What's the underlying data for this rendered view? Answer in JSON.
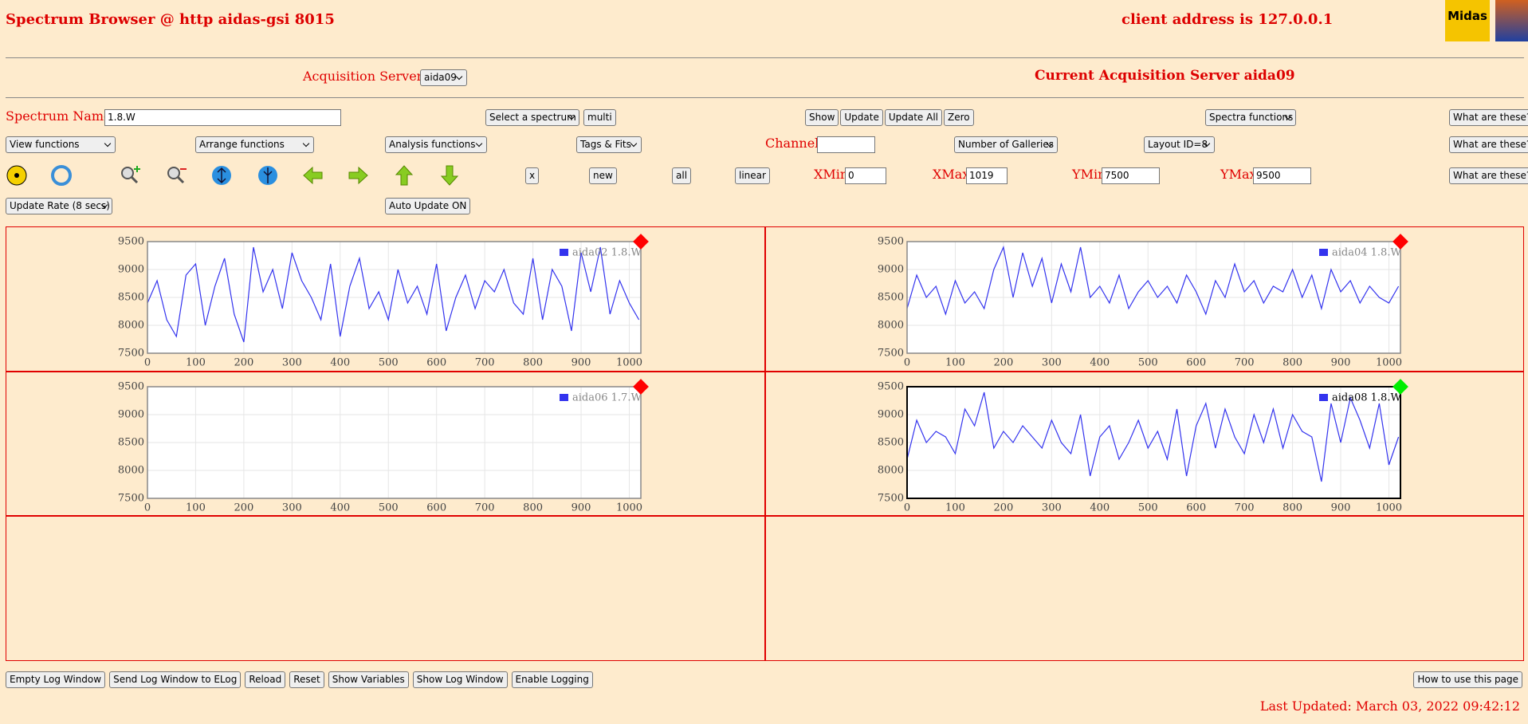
{
  "header": {
    "title": "Spectrum Browser @ http aidas-gsi 8015",
    "client": "client address is 127.0.0.1",
    "logo": "Midas"
  },
  "servers": {
    "label": "Acquisition Servers",
    "selected": "aida09",
    "current": "Current Acquisition Server aida09"
  },
  "row1": {
    "label": "Spectrum Name:",
    "input": "1.8.W",
    "select": "Select a spectrum",
    "multi": "multi",
    "buttons": [
      "Show",
      "Update",
      "Update All",
      "Zero"
    ],
    "spectra": "Spectra functions",
    "help": "What are these?"
  },
  "row2": {
    "selects": [
      "View functions",
      "Arrange functions",
      "Analysis functions",
      "Tags & Fits"
    ],
    "channel": "Channel:",
    "galleries": "Number of Galleries",
    "layout": "Layout ID=8",
    "help": "What are these?"
  },
  "row3": {
    "buttons": [
      "x",
      "new",
      "all",
      "linear"
    ],
    "fields": [
      {
        "label": "XMin",
        "value": 0
      },
      {
        "label": "XMax",
        "value": 1019
      },
      {
        "label": "YMin",
        "value": 7500
      },
      {
        "label": "YMax",
        "value": 9500
      }
    ],
    "help": "What are these?"
  },
  "row4": {
    "rate": "Update Rate (8 secs)",
    "auto": "Auto Update ON"
  },
  "footer": {
    "buttons": [
      "Empty Log Window",
      "Send Log Window to ELog",
      "Reload",
      "Reset",
      "Show Variables",
      "Show Log Window",
      "Enable Logging"
    ],
    "help": "How to use this page",
    "updated": "Last Updated: March 03, 2022 09:42:12"
  },
  "chart_data": [
    {
      "type": "line",
      "xlim": [
        0,
        1024
      ],
      "ylim": [
        7500,
        9500
      ],
      "xticks": [
        0,
        100,
        200,
        300,
        400,
        500,
        600,
        700,
        800,
        900,
        1000
      ],
      "yticks": [
        7500,
        8000,
        8500,
        9000,
        9500
      ],
      "grid": true,
      "marker_color": "#ff0000",
      "frame_color": "#888888",
      "legend_color": "#888888",
      "x": [
        0,
        20,
        40,
        60,
        80,
        100,
        120,
        140,
        160,
        180,
        200,
        220,
        240,
        260,
        280,
        300,
        320,
        340,
        360,
        380,
        400,
        420,
        440,
        460,
        480,
        500,
        520,
        540,
        560,
        580,
        600,
        620,
        640,
        660,
        680,
        700,
        720,
        740,
        760,
        780,
        800,
        820,
        840,
        860,
        880,
        900,
        920,
        940,
        960,
        980,
        1000,
        1020
      ],
      "series": [
        {
          "name": "aida02 1.8.W",
          "color": "#3333ee",
          "values": [
            8400,
            8800,
            8100,
            7800,
            8900,
            9100,
            8000,
            8700,
            9200,
            8200,
            7700,
            9400,
            8600,
            9000,
            8300,
            9300,
            8800,
            8500,
            8100,
            9100,
            7800,
            8700,
            9200,
            8300,
            8600,
            8100,
            9000,
            8400,
            8700,
            8200,
            9100,
            7900,
            8500,
            8900,
            8300,
            8800,
            8600,
            9000,
            8400,
            8200,
            9200,
            8100,
            9000,
            8700,
            7900,
            9300,
            8600,
            9400,
            8200,
            8800,
            8400,
            8100
          ]
        }
      ]
    },
    {
      "type": "line",
      "xlim": [
        0,
        1024
      ],
      "ylim": [
        7500,
        9500
      ],
      "xticks": [
        0,
        100,
        200,
        300,
        400,
        500,
        600,
        700,
        800,
        900,
        1000
      ],
      "yticks": [
        7500,
        8000,
        8500,
        9000,
        9500
      ],
      "grid": true,
      "marker_color": "#ff0000",
      "frame_color": "#888888",
      "legend_color": "#888888",
      "x": [
        0,
        20,
        40,
        60,
        80,
        100,
        120,
        140,
        160,
        180,
        200,
        220,
        240,
        260,
        280,
        300,
        320,
        340,
        360,
        380,
        400,
        420,
        440,
        460,
        480,
        500,
        520,
        540,
        560,
        580,
        600,
        620,
        640,
        660,
        680,
        700,
        720,
        740,
        760,
        780,
        800,
        820,
        840,
        860,
        880,
        900,
        920,
        940,
        960,
        980,
        1000,
        1020
      ],
      "series": [
        {
          "name": "aida04 1.8.W",
          "color": "#3333ee",
          "values": [
            8300,
            8900,
            8500,
            8700,
            8200,
            8800,
            8400,
            8600,
            8300,
            9000,
            9400,
            8500,
            9300,
            8700,
            9200,
            8400,
            9100,
            8600,
            9400,
            8500,
            8700,
            8400,
            8900,
            8300,
            8600,
            8800,
            8500,
            8700,
            8400,
            8900,
            8600,
            8200,
            8800,
            8500,
            9100,
            8600,
            8800,
            8400,
            8700,
            8600,
            9000,
            8500,
            8900,
            8300,
            9000,
            8600,
            8800,
            8400,
            8700,
            8500,
            8400,
            8700
          ]
        }
      ]
    },
    {
      "type": "line",
      "xlim": [
        0,
        1024
      ],
      "ylim": [
        7500,
        9500
      ],
      "xticks": [
        0,
        100,
        200,
        300,
        400,
        500,
        600,
        700,
        800,
        900,
        1000
      ],
      "yticks": [
        7500,
        8000,
        8500,
        9000,
        9500
      ],
      "grid": true,
      "marker_color": "#ff0000",
      "frame_color": "#888888",
      "legend_color": "#888888",
      "x": [],
      "series": [
        {
          "name": "aida06 1.7.W",
          "color": "#3333ee",
          "values": []
        }
      ]
    },
    {
      "type": "line",
      "xlim": [
        0,
        1024
      ],
      "ylim": [
        7500,
        9500
      ],
      "xticks": [
        0,
        100,
        200,
        300,
        400,
        500,
        600,
        700,
        800,
        900,
        1000
      ],
      "yticks": [
        7500,
        8000,
        8500,
        9000,
        9500
      ],
      "grid": true,
      "marker_color": "#00ee00",
      "frame_color": "#000000",
      "legend_color": "#000000",
      "x": [
        0,
        20,
        40,
        60,
        80,
        100,
        120,
        140,
        160,
        180,
        200,
        220,
        240,
        260,
        280,
        300,
        320,
        340,
        360,
        380,
        400,
        420,
        440,
        460,
        480,
        500,
        520,
        540,
        560,
        580,
        600,
        620,
        640,
        660,
        680,
        700,
        720,
        740,
        760,
        780,
        800,
        820,
        840,
        860,
        880,
        900,
        920,
        940,
        960,
        980,
        1000,
        1020
      ],
      "series": [
        {
          "name": "aida08 1.8.W",
          "color": "#3333ee",
          "values": [
            8200,
            8900,
            8500,
            8700,
            8600,
            8300,
            9100,
            8800,
            9400,
            8400,
            8700,
            8500,
            8800,
            8600,
            8400,
            8900,
            8500,
            8300,
            9000,
            7900,
            8600,
            8800,
            8200,
            8500,
            8900,
            8400,
            8700,
            8200,
            9100,
            7900,
            8800,
            9200,
            8400,
            9100,
            8600,
            8300,
            9000,
            8500,
            9100,
            8400,
            9000,
            8700,
            8600,
            7800,
            9200,
            8500,
            9300,
            8900,
            8400,
            9200,
            8100,
            8600
          ]
        }
      ]
    }
  ]
}
